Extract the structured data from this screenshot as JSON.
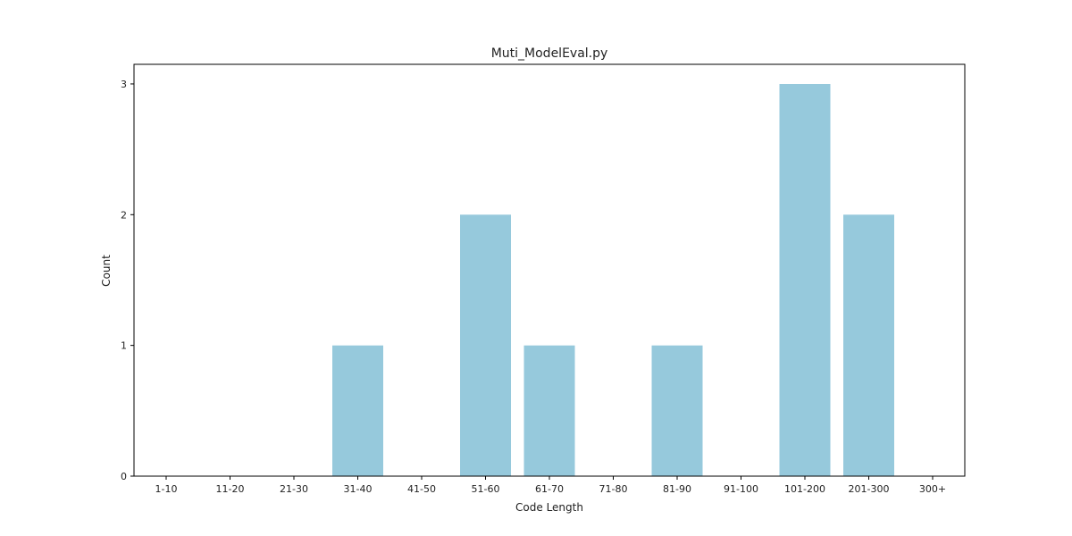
{
  "chart_data": {
    "type": "bar",
    "title": "Muti_ModelEval.py",
    "xlabel": "Code Length",
    "ylabel": "Count",
    "categories": [
      "1-10",
      "11-20",
      "21-30",
      "31-40",
      "41-50",
      "51-60",
      "61-70",
      "71-80",
      "81-90",
      "91-100",
      "101-200",
      "201-300",
      "300+"
    ],
    "values": [
      0,
      0,
      0,
      1,
      0,
      2,
      1,
      0,
      1,
      0,
      3,
      2,
      0
    ],
    "yticks": [
      0,
      1,
      2,
      3
    ],
    "ylim": [
      0,
      3.15
    ],
    "grid": false,
    "legend": "none",
    "bar_color": "#96c9dc"
  }
}
